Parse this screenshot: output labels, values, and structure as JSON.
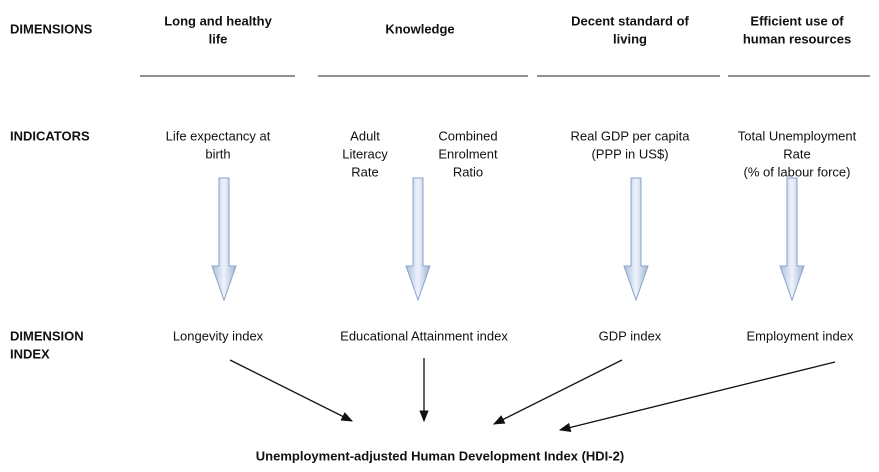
{
  "row_labels": {
    "dimensions": "DIMENSIONS",
    "indicators": "INDICATORS",
    "index": [
      "DIMENSION",
      "INDEX"
    ]
  },
  "dimensions": [
    [
      "Long and healthy",
      "life"
    ],
    [
      "Knowledge"
    ],
    [
      "Decent standard of",
      "living"
    ],
    [
      "Efficient use of",
      "human resources"
    ]
  ],
  "indicators": [
    [
      "Life expectancy at",
      "birth"
    ],
    [
      "Adult",
      "Literacy",
      "Rate"
    ],
    [
      "Combined",
      "Enrolment",
      "Ratio"
    ],
    [
      "Real GDP per capita",
      "(PPP in US$)"
    ],
    [
      "Total Unemployment",
      "Rate",
      "(% of labour force)"
    ]
  ],
  "indices": [
    "Longevity index",
    "Educational Attainment index",
    "GDP index",
    "Employment index"
  ],
  "result": "Unemployment-adjusted  Human Development  Index (HDI-2)"
}
